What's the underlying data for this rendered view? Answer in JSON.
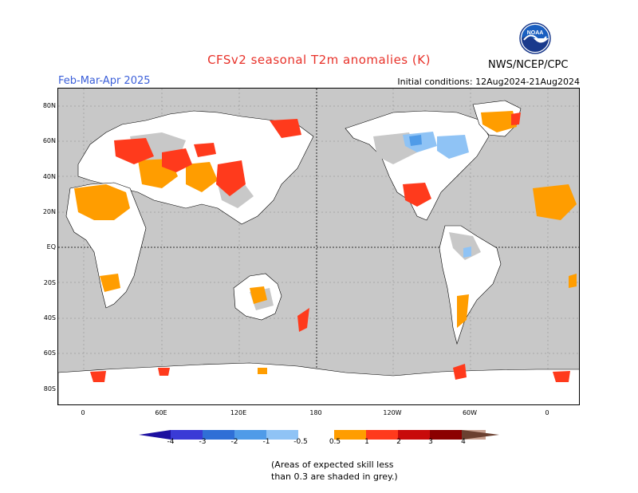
{
  "header": {
    "title": "CFSv2 seasonal T2m anomalies (K)",
    "season": "Feb-Mar-Apr 2025",
    "initial_conditions": "Initial conditions: 12Aug2024-21Aug2024",
    "organization": "NWS/NCEP/CPC",
    "logo_text": "NOAA"
  },
  "map": {
    "lat_labels": [
      "80N",
      "60N",
      "40N",
      "20N",
      "EQ",
      "20S",
      "40S",
      "60S",
      "80S"
    ],
    "lon_labels": [
      "0",
      "60E",
      "120E",
      "180",
      "120W",
      "60W",
      "0"
    ],
    "land_color": "#ffffff",
    "ocean_color": "#c8c8c8",
    "low_skill_color": "#c8c8c8"
  },
  "legend": {
    "tick_labels": [
      "-4",
      "-3",
      "-2",
      "-1",
      "-0.5",
      "0.5",
      "1",
      "2",
      "3",
      "4"
    ],
    "colors": [
      "#1c0fa0",
      "#3a3ad6",
      "#2f6fd6",
      "#4f9be8",
      "#8fc3f5",
      "#ffffff",
      "#ff9d00",
      "#ff3a1c",
      "#c80a0a",
      "#8b0000",
      "#c8a090",
      "#6b4030"
    ]
  },
  "note": {
    "line1": "(Areas of expected skill less",
    "line2": "than 0.3 are shaded in grey.)"
  }
}
